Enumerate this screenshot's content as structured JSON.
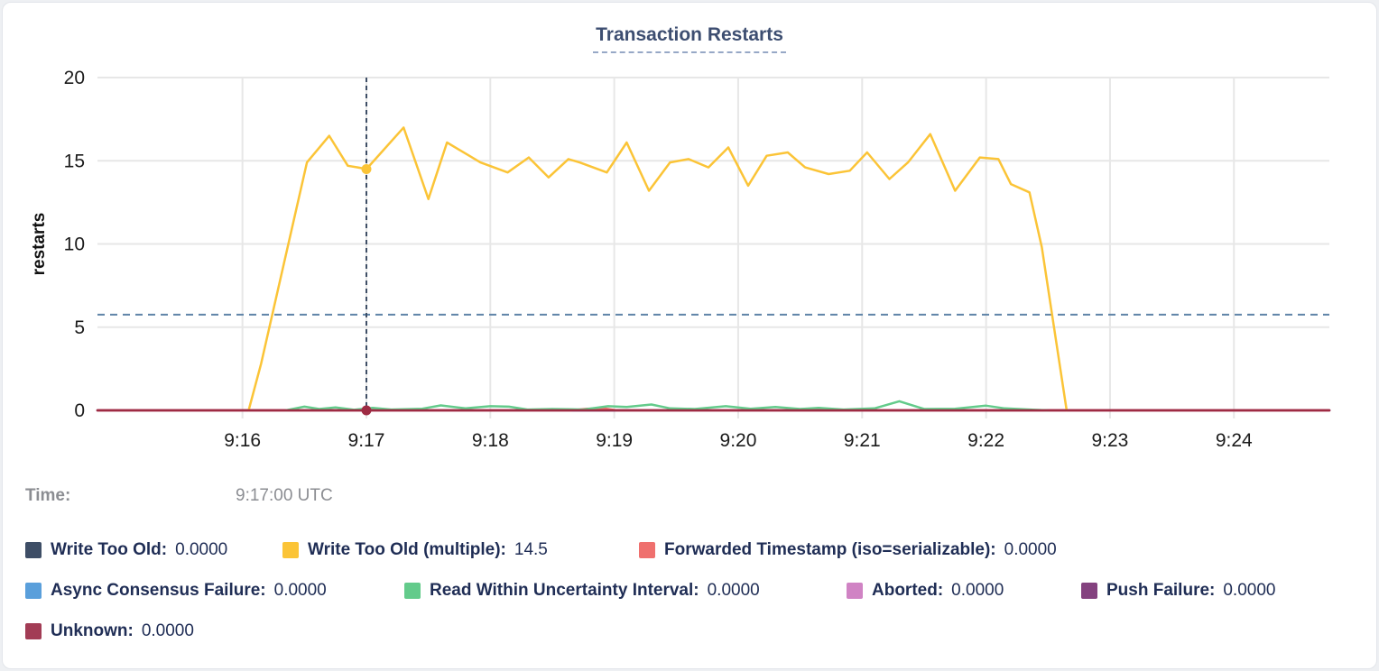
{
  "header": {
    "title": "Transaction Restarts"
  },
  "time_row": {
    "label": "Time:",
    "value": "9:17:00 UTC"
  },
  "chart_data": {
    "type": "line",
    "title": "Transaction Restarts",
    "ylabel": "restarts",
    "ylim": [
      0,
      20
    ],
    "yticks": [
      0,
      5,
      10,
      15,
      20
    ],
    "x_domain_minutes_after_9am": [
      14.83,
      24.77
    ],
    "xticks": [
      {
        "t": 16,
        "label": "9:16"
      },
      {
        "t": 17,
        "label": "9:17"
      },
      {
        "t": 18,
        "label": "9:18"
      },
      {
        "t": 19,
        "label": "9:19"
      },
      {
        "t": 20,
        "label": "9:20"
      },
      {
        "t": 21,
        "label": "9:21"
      },
      {
        "t": 22,
        "label": "9:22"
      },
      {
        "t": 23,
        "label": "9:23"
      },
      {
        "t": 24,
        "label": "9:24"
      }
    ],
    "grid": true,
    "legend_position": "bottom",
    "crosshair": {
      "t": 17,
      "time_label": "9:17:00 UTC",
      "hline_value": 5.75,
      "vline_color": "#3e4e66",
      "hline_color": "#5f84a8",
      "dots": [
        {
          "series": "Write Too Old (multiple)",
          "value": 14.5
        },
        {
          "series": "Unknown",
          "value": 0
        }
      ]
    },
    "series": [
      {
        "name": "Write Too Old",
        "color": "#3e4e66",
        "cursor_value": "0.0000",
        "points": [
          [
            14.83,
            0
          ],
          [
            24.77,
            0
          ]
        ]
      },
      {
        "name": "Write Too Old (multiple)",
        "color": "#fbc437",
        "cursor_value": "14.5",
        "points": [
          [
            16.05,
            0
          ],
          [
            16.15,
            2.8
          ],
          [
            16.52,
            14.9
          ],
          [
            16.7,
            16.5
          ],
          [
            16.85,
            14.7
          ],
          [
            16.93,
            14.6
          ],
          [
            17.0,
            14.5
          ],
          [
            17.3,
            17.0
          ],
          [
            17.5,
            12.7
          ],
          [
            17.65,
            16.1
          ],
          [
            17.83,
            15.3
          ],
          [
            17.92,
            14.9
          ],
          [
            18.14,
            14.3
          ],
          [
            18.31,
            15.2
          ],
          [
            18.47,
            14.0
          ],
          [
            18.63,
            15.1
          ],
          [
            18.72,
            14.9
          ],
          [
            18.94,
            14.3
          ],
          [
            19.1,
            16.1
          ],
          [
            19.28,
            13.2
          ],
          [
            19.45,
            14.9
          ],
          [
            19.6,
            15.1
          ],
          [
            19.76,
            14.6
          ],
          [
            19.92,
            15.8
          ],
          [
            20.08,
            13.5
          ],
          [
            20.23,
            15.3
          ],
          [
            20.4,
            15.5
          ],
          [
            20.54,
            14.6
          ],
          [
            20.73,
            14.2
          ],
          [
            20.9,
            14.4
          ],
          [
            21.04,
            15.5
          ],
          [
            21.22,
            13.9
          ],
          [
            21.37,
            14.9
          ],
          [
            21.55,
            16.6
          ],
          [
            21.75,
            13.2
          ],
          [
            21.95,
            15.2
          ],
          [
            22.1,
            15.1
          ],
          [
            22.2,
            13.6
          ],
          [
            22.35,
            13.1
          ],
          [
            22.45,
            9.8
          ],
          [
            22.65,
            0
          ]
        ]
      },
      {
        "name": "Forwarded Timestamp (iso=serializable)",
        "color": "#ef706e",
        "cursor_value": "0.0000",
        "points": [
          [
            14.83,
            0
          ],
          [
            18.65,
            0
          ],
          [
            18.78,
            0.1
          ],
          [
            18.92,
            0.12
          ],
          [
            19.02,
            0
          ],
          [
            24.77,
            0
          ]
        ]
      },
      {
        "name": "Async Consensus Failure",
        "color": "#5a9fdb",
        "cursor_value": "0.0000",
        "points": [
          [
            14.83,
            0
          ],
          [
            24.77,
            0
          ]
        ]
      },
      {
        "name": "Read Within Uncertainty Interval",
        "color": "#63cb8b",
        "cursor_value": "0.0000",
        "points": [
          [
            16.35,
            0
          ],
          [
            16.5,
            0.22
          ],
          [
            16.62,
            0.08
          ],
          [
            16.75,
            0.18
          ],
          [
            16.9,
            0.03
          ],
          [
            17.05,
            0.15
          ],
          [
            17.2,
            0.05
          ],
          [
            17.45,
            0.1
          ],
          [
            17.6,
            0.3
          ],
          [
            17.8,
            0.12
          ],
          [
            18.0,
            0.25
          ],
          [
            18.15,
            0.22
          ],
          [
            18.3,
            0.05
          ],
          [
            18.5,
            0.08
          ],
          [
            18.75,
            0.05
          ],
          [
            18.95,
            0.25
          ],
          [
            19.1,
            0.2
          ],
          [
            19.3,
            0.35
          ],
          [
            19.45,
            0.12
          ],
          [
            19.65,
            0.08
          ],
          [
            19.9,
            0.25
          ],
          [
            20.1,
            0.1
          ],
          [
            20.3,
            0.2
          ],
          [
            20.5,
            0.08
          ],
          [
            20.65,
            0.15
          ],
          [
            20.85,
            0.05
          ],
          [
            21.1,
            0.12
          ],
          [
            21.3,
            0.55
          ],
          [
            21.5,
            0.08
          ],
          [
            21.75,
            0.1
          ],
          [
            22.0,
            0.28
          ],
          [
            22.15,
            0.12
          ],
          [
            22.35,
            0.05
          ],
          [
            22.5,
            0
          ]
        ]
      },
      {
        "name": "Aborted",
        "color": "#d083c4",
        "cursor_value": "0.0000",
        "points": [
          [
            14.83,
            0
          ],
          [
            24.77,
            0
          ]
        ]
      },
      {
        "name": "Push Failure",
        "color": "#84427f",
        "cursor_value": "0.0000",
        "points": [
          [
            14.83,
            0
          ],
          [
            24.77,
            0
          ]
        ]
      },
      {
        "name": "Unknown",
        "color": "#9e2b43",
        "cursor_value": "0.0000",
        "points": [
          [
            14.83,
            0
          ],
          [
            24.77,
            0
          ]
        ]
      }
    ],
    "legend_rows": [
      [
        0,
        1,
        2
      ],
      [
        3,
        4,
        5,
        6
      ],
      [
        7
      ]
    ],
    "draw_order": [
      0,
      3,
      5,
      6,
      2,
      4,
      1,
      7
    ],
    "layout": {
      "gridline_color": "#e7e7e7",
      "axis_text_color": "#1b1b1b",
      "title_color": "#3d4e71",
      "title_underline_color": "#97a8c6",
      "legend_text_color": "#1f2d55",
      "time_text_color": "#8b8d92",
      "background": "#ffffff"
    }
  }
}
